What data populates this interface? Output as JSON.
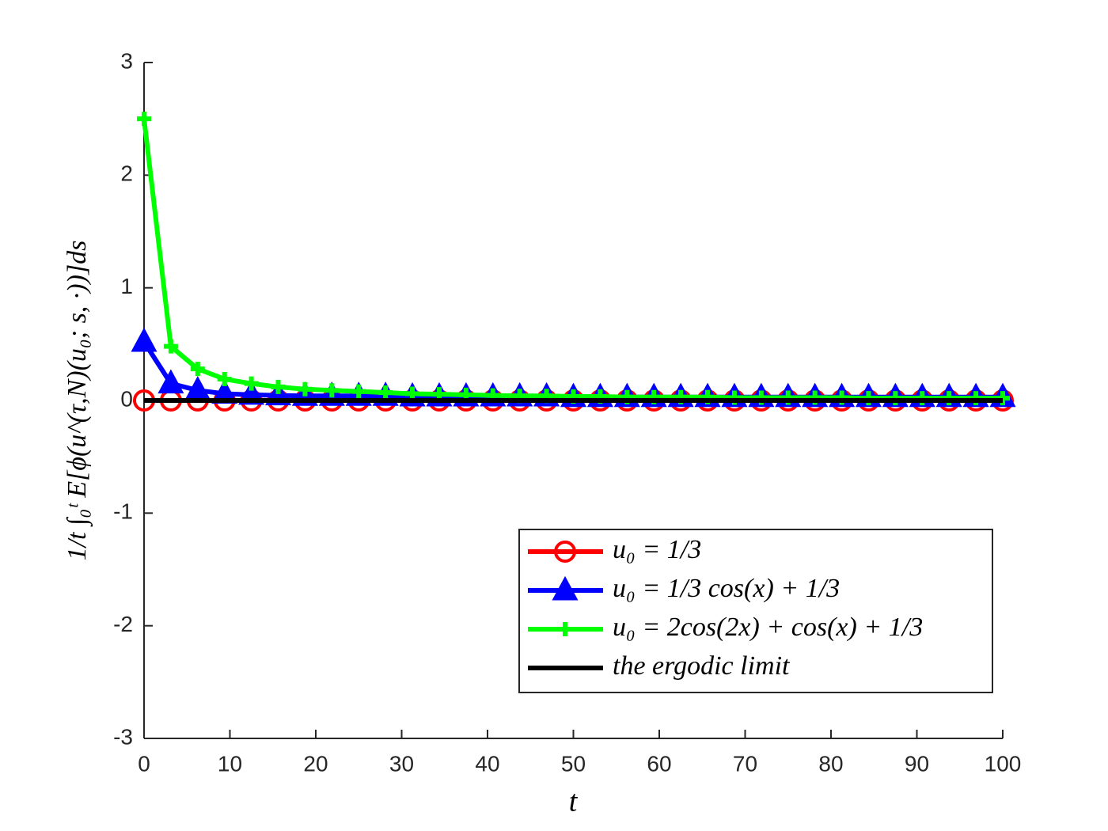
{
  "chart_data": {
    "type": "line",
    "xlabel": "t",
    "ylabel": "1/t ∫₀ᵗ E[ϕ(u^(τ,N)(u₀; s, ·))]ds",
    "x": [
      0,
      3.125,
      6.25,
      9.375,
      12.5,
      15.625,
      18.75,
      21.875,
      25,
      28.125,
      31.25,
      34.375,
      37.5,
      40.625,
      43.75,
      46.875,
      50,
      53.125,
      56.25,
      59.375,
      62.5,
      65.625,
      68.75,
      71.875,
      75,
      78.125,
      81.25,
      84.375,
      87.5,
      90.625,
      93.75,
      96.875,
      100
    ],
    "series": [
      {
        "name": "u₀ = 1/3",
        "color": "#ff0000",
        "marker": "circle",
        "values": [
          0,
          0,
          0,
          0,
          0,
          0,
          0,
          0,
          0,
          0,
          0,
          0,
          0,
          0,
          0,
          0,
          0,
          0,
          0,
          0,
          0,
          0,
          0,
          0,
          0,
          0,
          0,
          0,
          0,
          0,
          0,
          0,
          0
        ]
      },
      {
        "name": "u₀ = 1/3 cos(x) + 1/3",
        "color": "#0000ff",
        "marker": "triangle",
        "values": [
          0.52,
          0.15,
          0.09,
          0.06,
          0.05,
          0.045,
          0.04,
          0.04,
          0.04,
          0.04,
          0.035,
          0.035,
          0.035,
          0.035,
          0.035,
          0.035,
          0.03,
          0.03,
          0.03,
          0.03,
          0.03,
          0.03,
          0.03,
          0.03,
          0.03,
          0.03,
          0.03,
          0.03,
          0.03,
          0.03,
          0.03,
          0.03,
          0.03
        ]
      },
      {
        "name": "u₀ = 2cos(2x) + cos(x) + 1/3",
        "color": "#00ff00",
        "marker": "plus",
        "values": [
          2.5,
          0.48,
          0.28,
          0.19,
          0.15,
          0.12,
          0.1,
          0.09,
          0.08,
          0.07,
          0.06,
          0.055,
          0.05,
          0.045,
          0.04,
          0.04,
          0.035,
          0.035,
          0.03,
          0.03,
          0.03,
          0.03,
          0.025,
          0.025,
          0.025,
          0.025,
          0.025,
          0.02,
          0.02,
          0.02,
          0.02,
          0.02,
          0.02
        ]
      },
      {
        "name": "the ergodic limit",
        "color": "#000000",
        "marker": "none",
        "values": [
          0,
          0,
          0,
          0,
          0,
          0,
          0,
          0,
          0,
          0,
          0,
          0,
          0,
          0,
          0,
          0,
          0,
          0,
          0,
          0,
          0,
          0,
          0,
          0,
          0,
          0,
          0,
          0,
          0,
          0,
          0,
          0,
          0
        ]
      }
    ],
    "xlim": [
      0,
      100
    ],
    "xticks": [
      0,
      10,
      20,
      30,
      40,
      50,
      60,
      70,
      80,
      90,
      100
    ],
    "ylim": [
      -3,
      3
    ],
    "yticks": [
      -3,
      -2,
      -1,
      0,
      1,
      2,
      3
    ],
    "legend": "southeast"
  }
}
